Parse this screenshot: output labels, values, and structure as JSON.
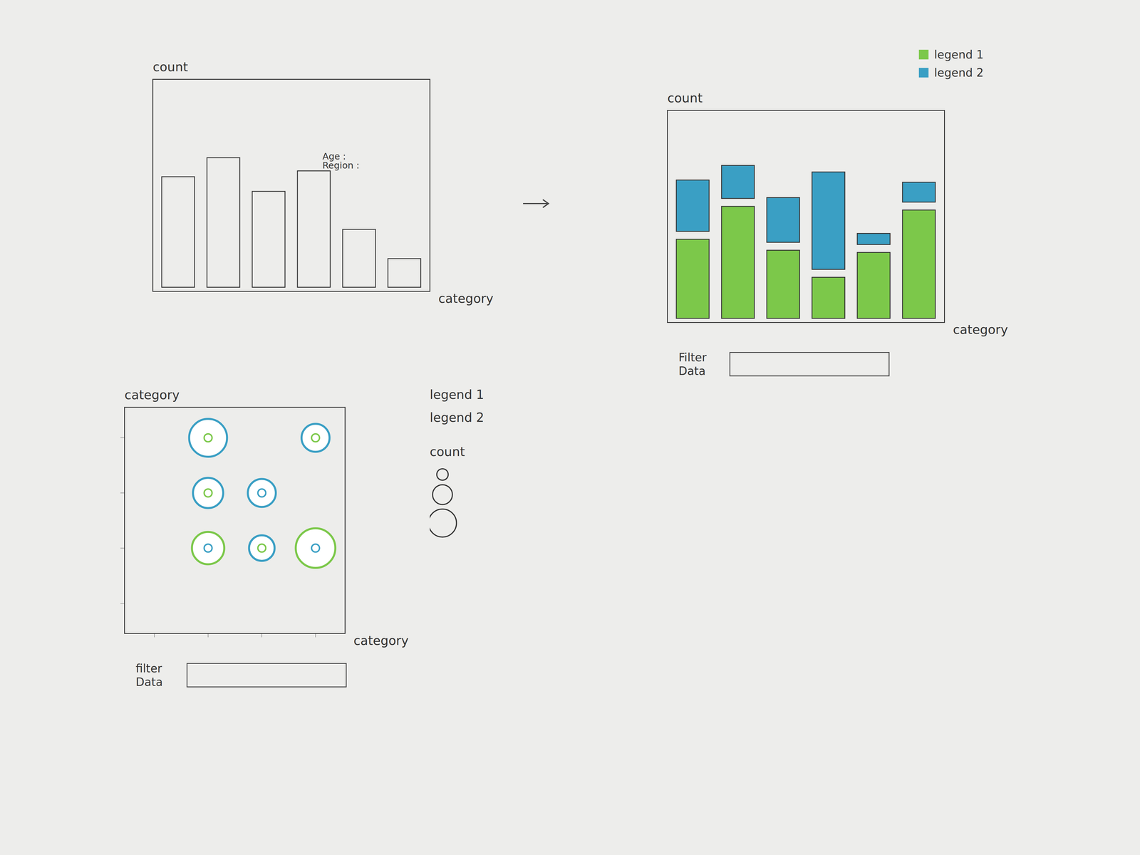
{
  "chart_data": [
    {
      "type": "bar",
      "ylabel": "count",
      "xlabel": "category",
      "categories": [
        null,
        null,
        null,
        null,
        null,
        null
      ],
      "values": [
        162,
        188,
        142,
        170,
        90,
        50
      ],
      "ylim": [
        0,
        290
      ],
      "yticks": [],
      "tick_labels": false,
      "annotation": {
        "text": [
          "Age :",
          "Region :"
        ],
        "at": 3
      }
    },
    {
      "type": "bar",
      "ylabel": "count",
      "xlabel": "category",
      "categories": [
        null,
        null,
        null,
        null,
        null,
        null
      ],
      "series": [
        {
          "name": "legend 1",
          "color": "#7cc84a",
          "values": [
            119,
            164,
            104,
            67,
            101,
            159
          ]
        },
        {
          "name": "legend 2",
          "color": "#3a9fc4",
          "values": [
            81,
            56,
            72,
            144,
            26,
            38
          ]
        }
      ],
      "ylim": [
        0,
        290
      ],
      "yticks": [],
      "stacked": true,
      "legend": "top-right",
      "tick_labels": false,
      "filter": {
        "label": "Filter Data"
      }
    },
    {
      "type": "scatter",
      "ylabel": "category",
      "xlabel": "category",
      "categories": [
        null,
        null,
        null,
        null
      ],
      "y_categories": [
        null,
        null,
        null,
        null
      ],
      "series": [
        {
          "name": "legend 1",
          "color": "#7cc84a"
        },
        {
          "name": "legend 2",
          "color": "#3a9fc4"
        }
      ],
      "points": [
        {
          "x": 1,
          "y": 3,
          "count": 11,
          "series": "legend 2",
          "inner": "legend 1"
        },
        {
          "x": 3,
          "y": 3,
          "count": 6,
          "series": "legend 2",
          "inner": "legend 1"
        },
        {
          "x": 1,
          "y": 2,
          "count": 7,
          "series": "legend 2",
          "inner": "legend 1"
        },
        {
          "x": 2,
          "y": 2,
          "count": 6,
          "series": "legend 2",
          "inner": "legend 2"
        },
        {
          "x": 1,
          "y": 1,
          "count": 8,
          "series": "legend 1",
          "inner": "legend 2"
        },
        {
          "x": 2,
          "y": 1,
          "count": 5,
          "series": "legend 2",
          "inner": "legend 1"
        },
        {
          "x": 3,
          "y": 1,
          "count": 12,
          "series": "legend 1",
          "inner": "legend 2"
        }
      ],
      "size_legend": {
        "title": "count",
        "values": [
          1,
          3,
          6
        ]
      },
      "legend": "right",
      "tick_labels": false,
      "filter": {
        "label": "filter Data"
      }
    }
  ]
}
